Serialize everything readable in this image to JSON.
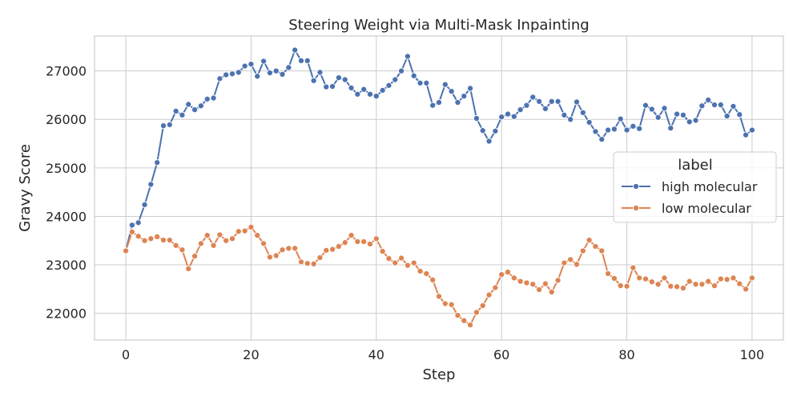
{
  "chart_data": {
    "type": "line",
    "title": "Steering Weight via Multi-Mask Inpainting",
    "xlabel": "Step",
    "ylabel": "Gravy Score",
    "xlim": [
      -5,
      105
    ],
    "ylim": [
      21450,
      27720
    ],
    "xticks": [
      "0",
      "20",
      "40",
      "60",
      "80",
      "100"
    ],
    "yticks": [
      "22000",
      "23000",
      "24000",
      "25000",
      "26000",
      "27000"
    ],
    "grid": true,
    "legend": {
      "title": "label",
      "position": "right"
    },
    "x": [
      0,
      1,
      2,
      3,
      4,
      5,
      6,
      7,
      8,
      9,
      10,
      11,
      12,
      13,
      14,
      15,
      16,
      17,
      18,
      19,
      20,
      21,
      22,
      23,
      24,
      25,
      26,
      27,
      28,
      29,
      30,
      31,
      32,
      33,
      34,
      35,
      36,
      37,
      38,
      39,
      40,
      41,
      42,
      43,
      44,
      45,
      46,
      47,
      48,
      49,
      50,
      51,
      52,
      53,
      54,
      55,
      56,
      57,
      58,
      59,
      60,
      61,
      62,
      63,
      64,
      65,
      66,
      67,
      68,
      69,
      70,
      71,
      72,
      73,
      74,
      75,
      76,
      77,
      78,
      79,
      80,
      81,
      82,
      83,
      84,
      85,
      86,
      87,
      88,
      89,
      90,
      91,
      92,
      93,
      94,
      95,
      96,
      97,
      98,
      99,
      100
    ],
    "series": [
      {
        "name": "high molecular",
        "color": "#4c72b0",
        "values": [
          23290,
          23820,
          23870,
          24240,
          24660,
          25110,
          25870,
          25890,
          26170,
          26090,
          26310,
          26200,
          26280,
          26420,
          26440,
          26840,
          26920,
          26940,
          26970,
          27100,
          27140,
          26890,
          27200,
          26960,
          27000,
          26930,
          27070,
          27430,
          27210,
          27210,
          26800,
          26970,
          26670,
          26680,
          26860,
          26820,
          26650,
          26520,
          26620,
          26520,
          26480,
          26600,
          26700,
          26820,
          27000,
          27300,
          26900,
          26750,
          26750,
          26290,
          26350,
          26720,
          26580,
          26350,
          26480,
          26640,
          26020,
          25770,
          25550,
          25760,
          26050,
          26110,
          26060,
          26200,
          26290,
          26460,
          26370,
          26220,
          26370,
          26370,
          26090,
          26000,
          26360,
          26140,
          25940,
          25750,
          25590,
          25780,
          25800,
          26010,
          25780,
          25860,
          25810,
          26290,
          26210,
          26040,
          26230,
          25820,
          26110,
          26090,
          25950,
          25980,
          26280,
          26400,
          26300,
          26300,
          26070,
          26270,
          26100,
          25680,
          25780
        ]
      },
      {
        "name": "low molecular",
        "color": "#dd8452",
        "values": [
          23290,
          23680,
          23590,
          23500,
          23540,
          23580,
          23510,
          23510,
          23400,
          23310,
          22920,
          23180,
          23440,
          23610,
          23400,
          23620,
          23500,
          23540,
          23690,
          23700,
          23780,
          23610,
          23440,
          23160,
          23190,
          23310,
          23340,
          23340,
          23060,
          23030,
          23020,
          23150,
          23300,
          23320,
          23380,
          23460,
          23610,
          23480,
          23480,
          23430,
          23540,
          23280,
          23130,
          23040,
          23140,
          22990,
          23040,
          22870,
          22820,
          22690,
          22350,
          22200,
          22180,
          21960,
          21850,
          21760,
          22020,
          22160,
          22380,
          22530,
          22800,
          22850,
          22730,
          22660,
          22630,
          22600,
          22490,
          22610,
          22440,
          22680,
          23040,
          23110,
          23010,
          23290,
          23510,
          23380,
          23290,
          22820,
          22720,
          22570,
          22560,
          22940,
          22730,
          22710,
          22650,
          22600,
          22730,
          22560,
          22550,
          22520,
          22660,
          22600,
          22600,
          22660,
          22570,
          22710,
          22700,
          22730,
          22610,
          22500,
          22730
        ]
      }
    ]
  }
}
